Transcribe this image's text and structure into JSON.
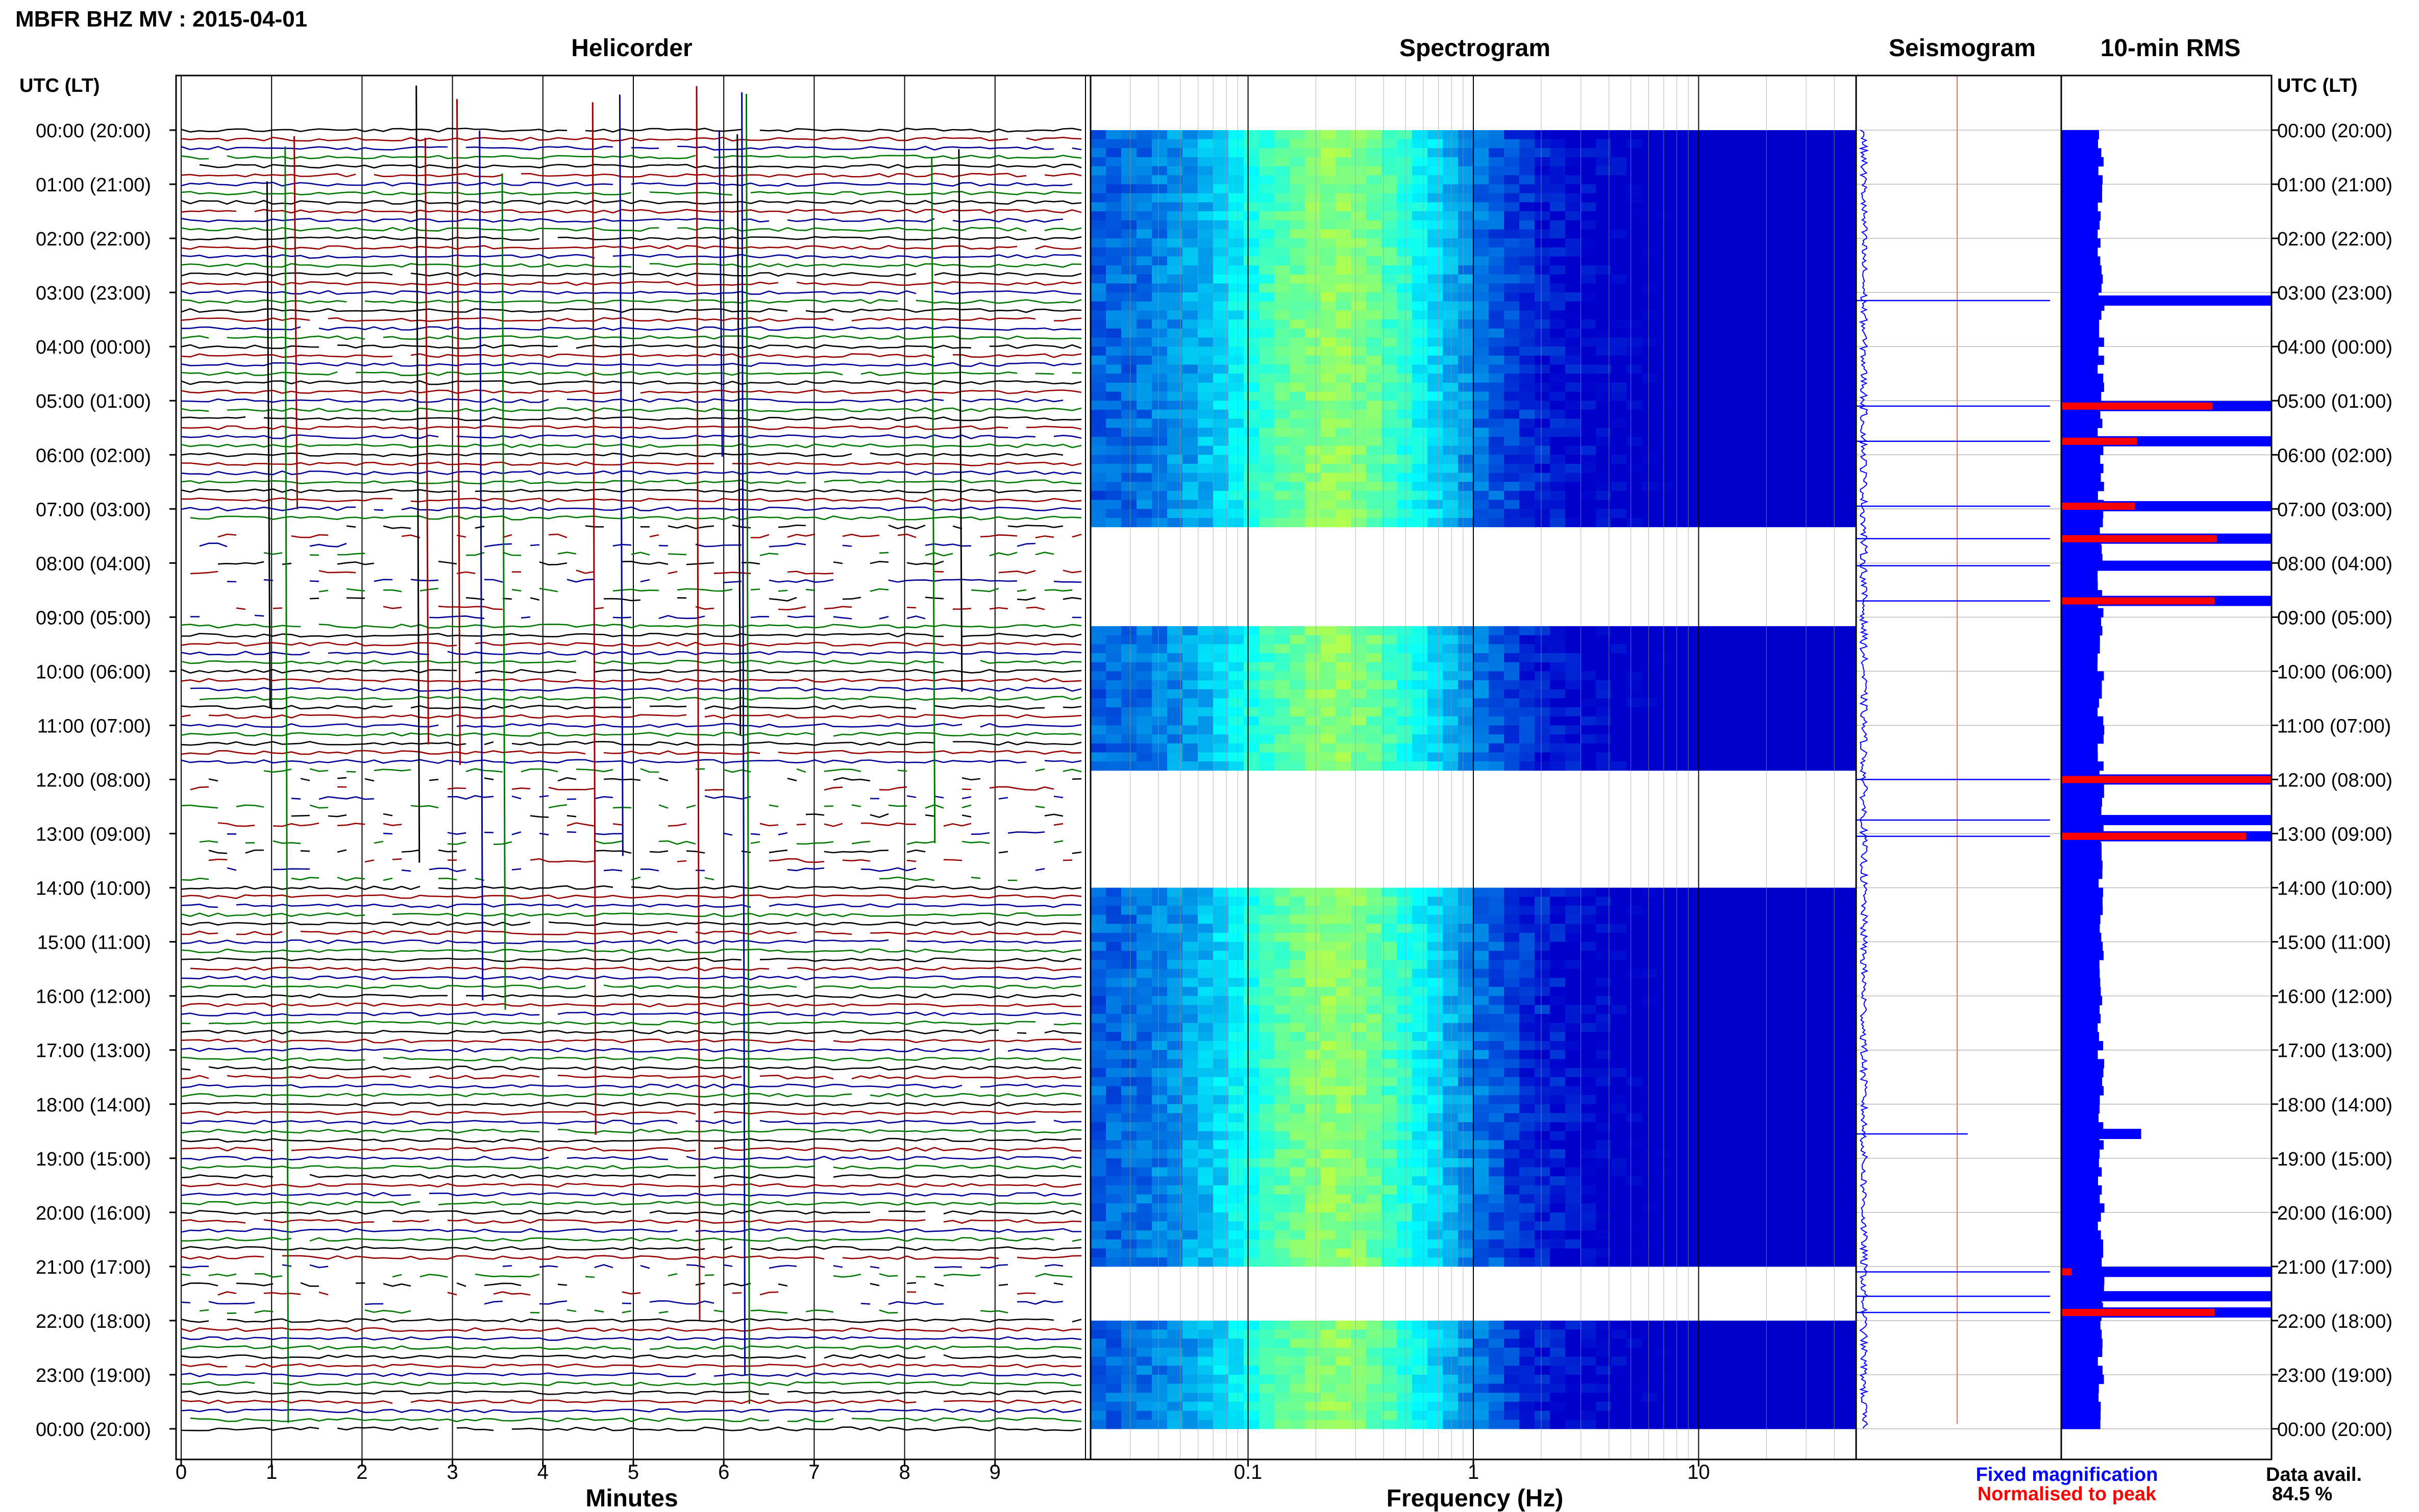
{
  "header": {
    "station_title": "MBFR BHZ MV : 2015-04-01",
    "time_axis_header": "UTC (LT)",
    "data_avail_label": "Data avail.",
    "data_avail_value": "84.5 %"
  },
  "colors": {
    "trace_black": "#000000",
    "trace_red": "#990000",
    "trace_blue": "#000099",
    "trace_green": "#007700",
    "spec_low": "#0000cc",
    "spec_mid": "#00ffff",
    "spec_high": "#ffff00",
    "rms_fixed": "#0000ff",
    "rms_peak": "#ff0000"
  },
  "chart_data": [
    {
      "type": "line",
      "panel": "helicorder",
      "title": "Helicorder",
      "xlabel": "Minutes",
      "x_ticks": [
        "0",
        "1",
        "2",
        "3",
        "4",
        "5",
        "6",
        "7",
        "8",
        "9"
      ],
      "xlim": [
        0,
        10
      ],
      "y_ticks": [
        "00:00 (20:00)",
        "01:00 (21:00)",
        "02:00 (22:00)",
        "03:00 (23:00)",
        "04:00 (00:00)",
        "05:00 (01:00)",
        "06:00 (02:00)",
        "07:00 (03:00)",
        "08:00 (04:00)",
        "09:00 (05:00)",
        "10:00 (06:00)",
        "11:00 (07:00)",
        "12:00 (08:00)",
        "13:00 (09:00)",
        "14:00 (10:00)",
        "15:00 (11:00)",
        "16:00 (12:00)",
        "17:00 (13:00)",
        "18:00 (14:00)",
        "19:00 (15:00)",
        "20:00 (16:00)",
        "21:00 (17:00)",
        "22:00 (18:00)",
        "23:00 (19:00)",
        "00:00 (20:00)"
      ],
      "lines_per_hour": 6,
      "gap_hours": [
        [
          7.3,
          9.1
        ],
        [
          11.7,
          14.0
        ],
        [
          21.0,
          22.0
        ]
      ]
    },
    {
      "type": "heatmap",
      "panel": "spectrogram",
      "title": "Spectrogram",
      "xlabel": "Frequency (Hz)",
      "x_scale": "log",
      "xlim": [
        0.02,
        50
      ],
      "x_ticks": [
        "0.1",
        "1",
        "10"
      ],
      "peak_frequency_hz": 0.25,
      "gap_hours": [
        [
          7.3,
          9.1
        ],
        [
          11.7,
          14.0
        ],
        [
          21.0,
          22.0
        ]
      ]
    },
    {
      "type": "line",
      "panel": "seismogram",
      "title": "Seismogram"
    },
    {
      "type": "bar",
      "panel": "rms",
      "title": "10-min RMS",
      "series": [
        {
          "name": "Fixed magnification",
          "color": "#0000ff"
        },
        {
          "name": "Normalised to peak",
          "color": "#ff0000"
        }
      ],
      "spikes": [
        {
          "hour": 3.15,
          "fixed": 1.0,
          "peak": 0.0
        },
        {
          "hour": 5.1,
          "fixed": 1.0,
          "peak": 0.72
        },
        {
          "hour": 5.75,
          "fixed": 1.0,
          "peak": 0.36
        },
        {
          "hour": 6.95,
          "fixed": 1.0,
          "peak": 0.35
        },
        {
          "hour": 7.55,
          "fixed": 1.0,
          "peak": 0.74
        },
        {
          "hour": 8.05,
          "fixed": 1.0,
          "peak": 0.0
        },
        {
          "hour": 8.7,
          "fixed": 1.0,
          "peak": 0.73
        },
        {
          "hour": 12.0,
          "fixed": 1.0,
          "peak": 1.0
        },
        {
          "hour": 12.75,
          "fixed": 1.0,
          "peak": 0.0
        },
        {
          "hour": 13.05,
          "fixed": 1.0,
          "peak": 0.88
        },
        {
          "hour": 18.55,
          "fixed": 0.38,
          "peak": 0.0
        },
        {
          "hour": 21.1,
          "fixed": 1.0,
          "peak": 0.05
        },
        {
          "hour": 21.55,
          "fixed": 1.0,
          "peak": 0.0
        },
        {
          "hour": 21.85,
          "fixed": 1.0,
          "peak": 0.73
        }
      ]
    }
  ]
}
